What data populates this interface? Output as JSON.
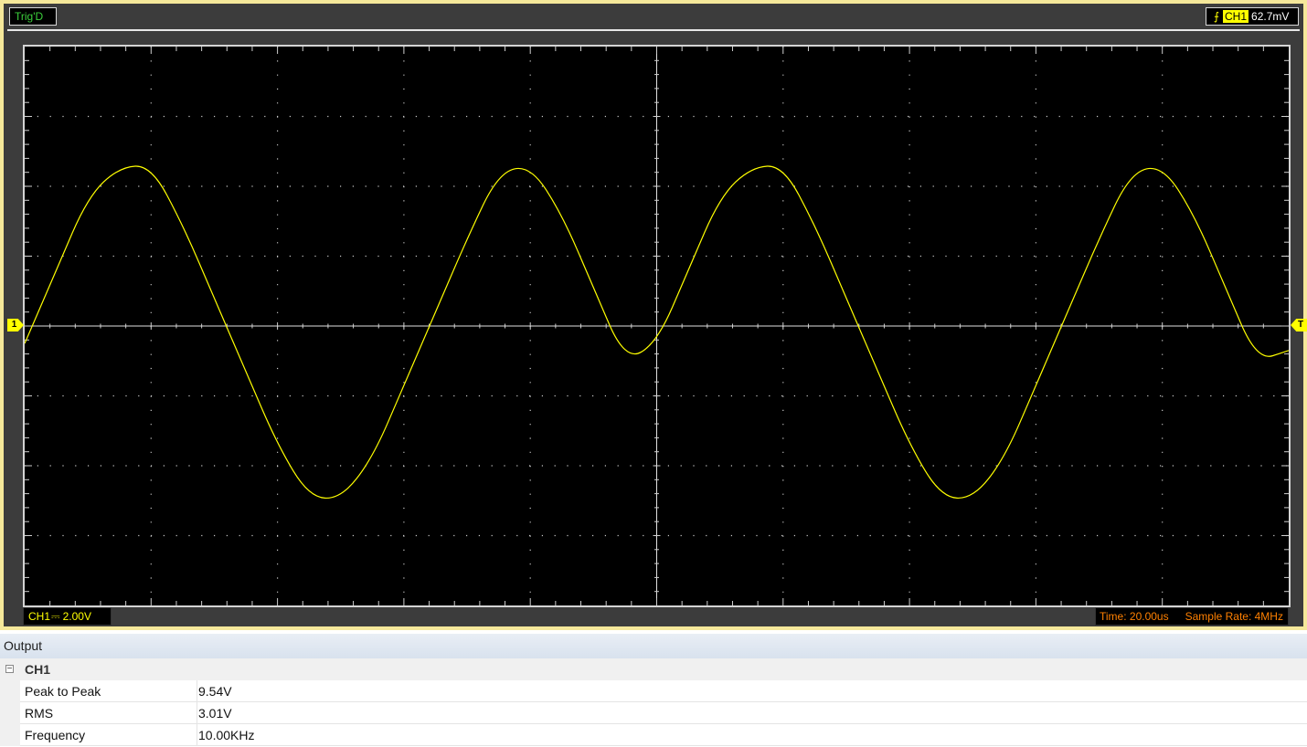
{
  "scope": {
    "trigger_status": "Trig'D",
    "trigger": {
      "edge_icon": "rising-edge-icon",
      "channel": "CH1",
      "level": "62.7mV"
    },
    "ch1_marker": "1",
    "trigger_marker": "T",
    "ch1_scale": {
      "channel": "CH1",
      "coupling": "⎓",
      "volts_per_div": "2.00V"
    },
    "timebase": {
      "time": "Time: 20.00us",
      "sample_rate": "Sample Rate: 4MHz"
    },
    "colors": {
      "trace": "#ffff00",
      "grid": "#c8c8c8",
      "screen": "#000000",
      "frame": "#f5e89a"
    }
  },
  "chart_data": {
    "type": "line",
    "title": "",
    "xlabel": "",
    "ylabel": "",
    "x_div": 10,
    "y_div": 8,
    "x_per_div_us": 20,
    "y_per_div_v": 2,
    "xlim_us": [
      -100,
      100
    ],
    "ylim_v": [
      -8,
      8
    ],
    "signal": {
      "waveform": "triangle-like (rounded peaks)",
      "frequency_khz": 10,
      "peak_v": 4.57,
      "trough_v": -4.97,
      "offset_v": -0.2
    },
    "series": [
      {
        "x": [
          -100,
          -95,
          -90,
          -85,
          -80,
          -75,
          -70,
          -65,
          -60,
          -55,
          -50,
          -45,
          -40,
          -35,
          -30,
          -25,
          -20,
          -15,
          -10,
          -5,
          0,
          5,
          10,
          15,
          20,
          25,
          30,
          35,
          40,
          45,
          50,
          55,
          60,
          65,
          70,
          75,
          80,
          85,
          90,
          95,
          100
        ],
        "y": [
          -0.5,
          1.6,
          3.7,
          4.55,
          4.6,
          2.9,
          0.8,
          -1.3,
          -3.4,
          -4.9,
          -4.95,
          -3.8,
          -1.7,
          0.4,
          2.5,
          4.4,
          4.6,
          3.2,
          1.1,
          -1.0,
          -0.5,
          1.6,
          3.7,
          4.55,
          4.6,
          2.9,
          0.8,
          -1.3,
          -3.4,
          -4.9,
          -4.95,
          -3.8,
          -1.7,
          0.4,
          2.5,
          4.4,
          4.6,
          3.2,
          1.1,
          -1.0,
          -0.7
        ]
      }
    ]
  },
  "output": {
    "title": "Output",
    "group": {
      "toggle": "−",
      "name": "CH1"
    },
    "rows": [
      {
        "name": "Peak to Peak",
        "value": "9.54V"
      },
      {
        "name": "RMS",
        "value": "3.01V"
      },
      {
        "name": "Frequency",
        "value": "10.00KHz"
      }
    ]
  }
}
